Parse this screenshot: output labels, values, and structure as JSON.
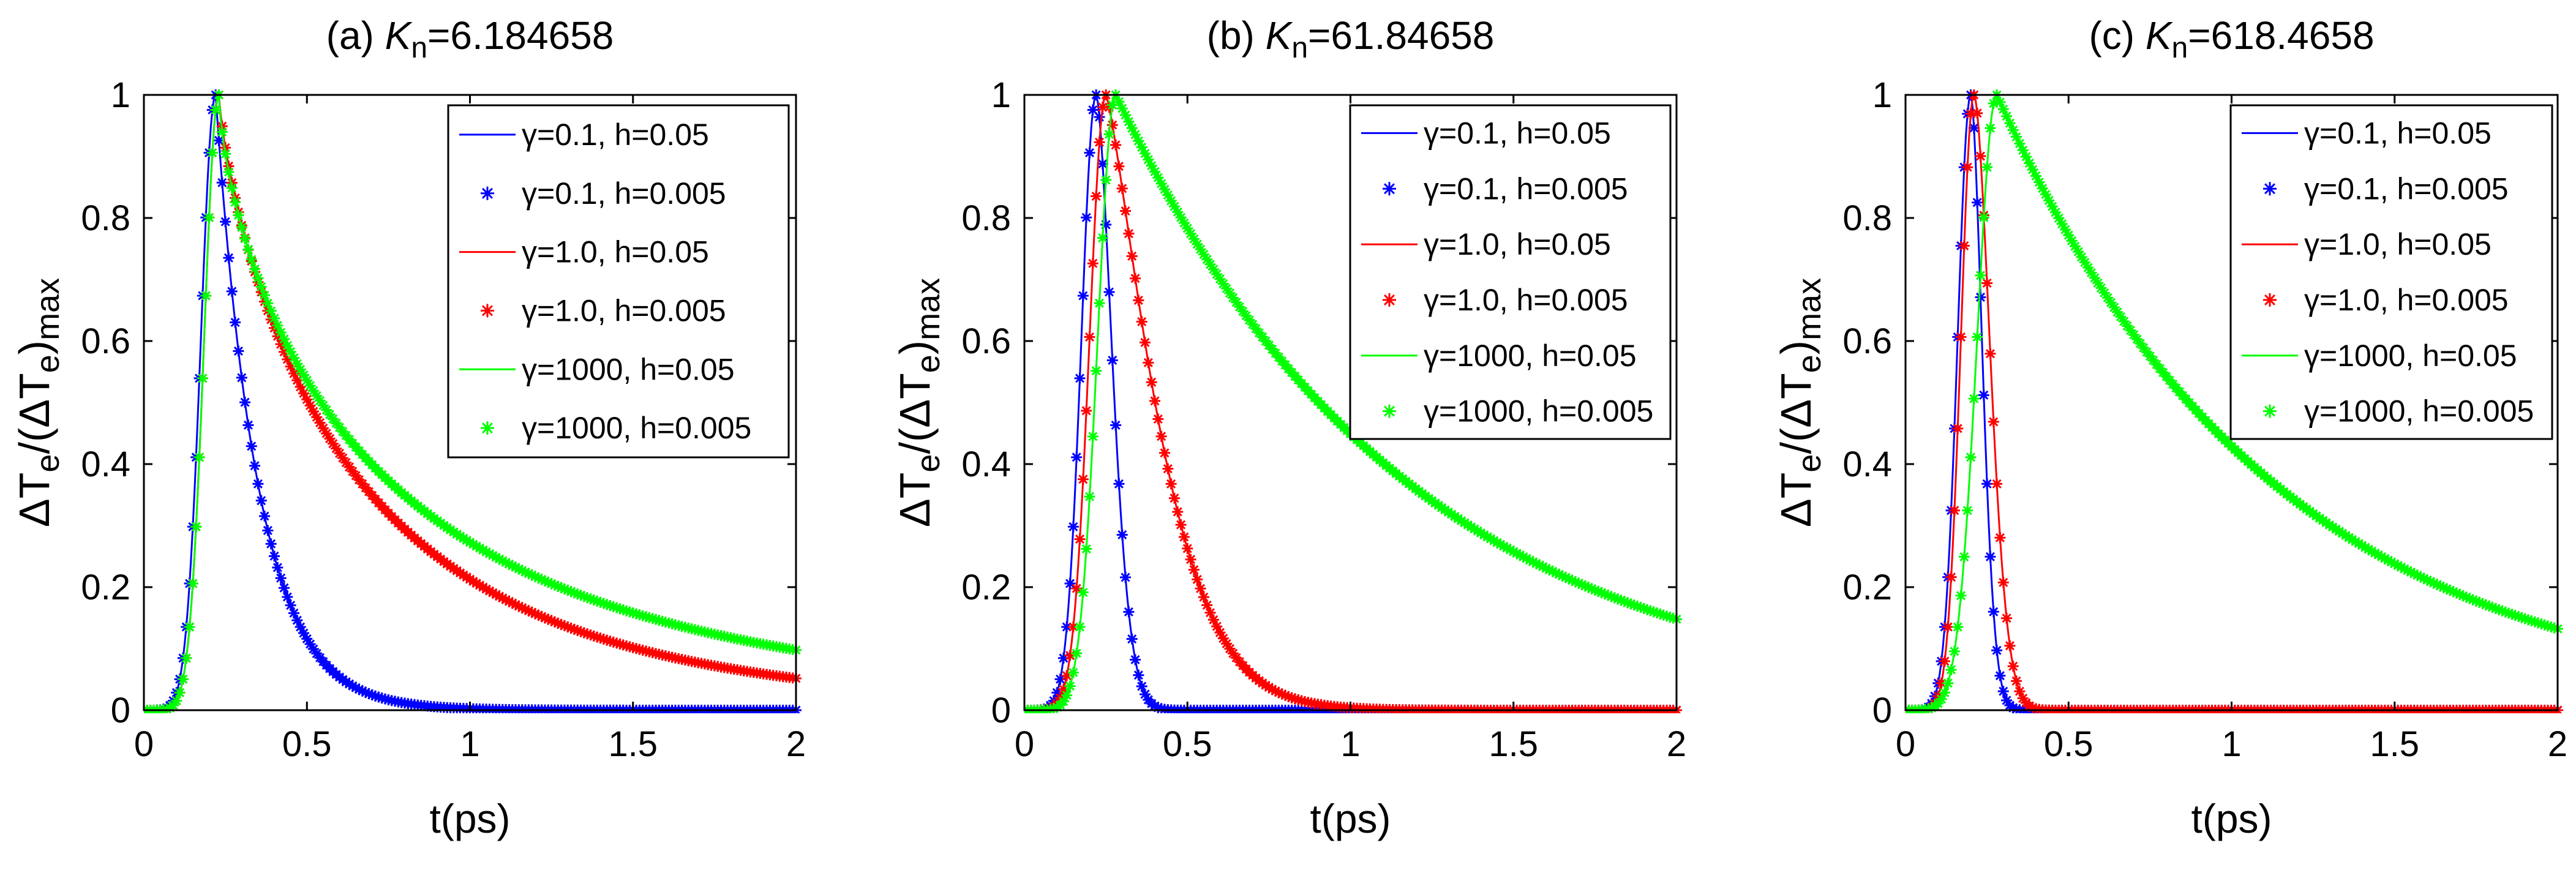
{
  "figure": {
    "style": {
      "colors": {
        "blue": "#0000ff",
        "red": "#ff0000",
        "green": "#00ff00",
        "axis": "#000000"
      }
    }
  },
  "chart_data": [
    {
      "type": "line",
      "panel": "(a)",
      "title_prefix": "(a)",
      "title_symbol": "K",
      "title_subscript": "n",
      "title_value": "=6.184658",
      "xlabel": "t(ps)",
      "ylabel": "ΔT_e/(ΔT_e)_max",
      "xlim": [
        0,
        2
      ],
      "ylim": [
        0,
        1
      ],
      "xticks": [
        0,
        0.5,
        1,
        1.5,
        2
      ],
      "xtick_labels": [
        "0",
        "0.5",
        "1",
        "1.5",
        "2"
      ],
      "yticks": [
        0,
        0.2,
        0.4,
        0.6,
        0.8,
        1
      ],
      "ytick_labels": [
        "0",
        "0.2",
        "0.4",
        "0.6",
        "0.8",
        "1"
      ],
      "legend_position": "top-right",
      "series": [
        {
          "name": "γ=0.1, h=0.05",
          "style": "line",
          "color": "blue",
          "model": {
            "peak": 0.22,
            "rise_sigma": 0.045,
            "decay_tau": 0.13,
            "decay_sharpness": 1.0
          }
        },
        {
          "name": "γ=0.1, h=0.005",
          "style": "markers",
          "color": "blue",
          "model": {
            "peak": 0.22,
            "rise_sigma": 0.045,
            "decay_tau": 0.13,
            "decay_sharpness": 1.0
          }
        },
        {
          "name": "γ=1.0, h=0.05",
          "style": "line",
          "color": "red",
          "model": {
            "peak": 0.23,
            "rise_sigma": 0.045,
            "decay_tau": 0.44,
            "decay_sharpness": 0.78
          }
        },
        {
          "name": "γ=1.0, h=0.005",
          "style": "markers",
          "color": "red",
          "model": {
            "peak": 0.23,
            "rise_sigma": 0.045,
            "decay_tau": 0.44,
            "decay_sharpness": 0.78
          }
        },
        {
          "name": "γ=1000, h=0.05",
          "style": "line",
          "color": "green",
          "model": {
            "peak": 0.23,
            "rise_sigma": 0.045,
            "decay_tau": 0.53,
            "decay_sharpness": 0.7
          }
        },
        {
          "name": "γ=1000, h=0.005",
          "style": "markers",
          "color": "green",
          "model": {
            "peak": 0.23,
            "rise_sigma": 0.045,
            "decay_tau": 0.53,
            "decay_sharpness": 0.7
          }
        }
      ]
    },
    {
      "type": "line",
      "panel": "(b)",
      "title_prefix": "(b)",
      "title_symbol": "K",
      "title_subscript": "n",
      "title_value": "=61.84658",
      "xlabel": "t(ps)",
      "ylabel": "ΔT_e/(ΔT_e)_max",
      "xlim": [
        0,
        2
      ],
      "ylim": [
        0,
        1
      ],
      "xticks": [
        0,
        0.5,
        1,
        1.5,
        2
      ],
      "xtick_labels": [
        "0",
        "0.5",
        "1",
        "1.5",
        "2"
      ],
      "yticks": [
        0,
        0.2,
        0.4,
        0.6,
        0.8,
        1
      ],
      "ytick_labels": [
        "0",
        "0.2",
        "0.4",
        "0.6",
        "0.8",
        "1"
      ],
      "legend_position": "top-right",
      "series": [
        {
          "name": "γ=0.1, h=0.05",
          "style": "line",
          "color": "blue",
          "model": {
            "peak": 0.22,
            "rise_sigma": 0.045,
            "decay_tau": 0.07,
            "decay_sharpness": 1.7
          }
        },
        {
          "name": "γ=0.1, h=0.005",
          "style": "markers",
          "color": "blue",
          "model": {
            "peak": 0.22,
            "rise_sigma": 0.045,
            "decay_tau": 0.07,
            "decay_sharpness": 1.7
          }
        },
        {
          "name": "γ=1.0, h=0.05",
          "style": "line",
          "color": "red",
          "model": {
            "peak": 0.25,
            "rise_sigma": 0.05,
            "decay_tau": 0.2,
            "decay_sharpness": 1.3
          }
        },
        {
          "name": "γ=1.0, h=0.005",
          "style": "markers",
          "color": "red",
          "model": {
            "peak": 0.25,
            "rise_sigma": 0.05,
            "decay_tau": 0.2,
            "decay_sharpness": 1.3
          }
        },
        {
          "name": "γ=1000, h=0.05",
          "style": "line",
          "color": "green",
          "model": {
            "peak": 0.28,
            "rise_sigma": 0.055,
            "decay_tau": 0.9,
            "decay_sharpness": 1.0
          }
        },
        {
          "name": "γ=1000, h=0.005",
          "style": "markers",
          "color": "green",
          "model": {
            "peak": 0.28,
            "rise_sigma": 0.055,
            "decay_tau": 0.9,
            "decay_sharpness": 1.0
          }
        }
      ]
    },
    {
      "type": "line",
      "panel": "(c)",
      "title_prefix": "(c)",
      "title_symbol": "K",
      "title_subscript": "n",
      "title_value": "=618.4658",
      "xlabel": "t(ps)",
      "ylabel": "ΔT_e/(ΔT_e)_max",
      "xlim": [
        0,
        2
      ],
      "ylim": [
        0,
        1
      ],
      "xticks": [
        0,
        0.5,
        1,
        1.5,
        2
      ],
      "xtick_labels": [
        "0",
        "0.5",
        "1",
        "1.5",
        "2"
      ],
      "yticks": [
        0,
        0.2,
        0.4,
        0.6,
        0.8,
        1
      ],
      "ytick_labels": [
        "0",
        "0.2",
        "0.4",
        "0.6",
        "0.8",
        "1"
      ],
      "legend_position": "top-right",
      "series": [
        {
          "name": "γ=0.1, h=0.05",
          "style": "line",
          "color": "blue",
          "model": {
            "peak": 0.2,
            "rise_sigma": 0.04,
            "decay_tau": 0.05,
            "decay_sharpness": 1.8
          }
        },
        {
          "name": "γ=0.1, h=0.005",
          "style": "markers",
          "color": "blue",
          "model": {
            "peak": 0.2,
            "rise_sigma": 0.04,
            "decay_tau": 0.05,
            "decay_sharpness": 1.8
          }
        },
        {
          "name": "γ=1.0, h=0.05",
          "style": "line",
          "color": "red",
          "model": {
            "peak": 0.21,
            "rise_sigma": 0.04,
            "decay_tau": 0.07,
            "decay_sharpness": 1.8
          }
        },
        {
          "name": "γ=1.0, h=0.005",
          "style": "markers",
          "color": "red",
          "model": {
            "peak": 0.21,
            "rise_sigma": 0.04,
            "decay_tau": 0.07,
            "decay_sharpness": 1.8
          }
        },
        {
          "name": "γ=1000, h=0.05",
          "style": "line",
          "color": "green",
          "model": {
            "peak": 0.28,
            "rise_sigma": 0.06,
            "decay_tau": 0.85,
            "decay_sharpness": 1.0
          }
        },
        {
          "name": "γ=1000, h=0.005",
          "style": "markers",
          "color": "green",
          "model": {
            "peak": 0.28,
            "rise_sigma": 0.06,
            "decay_tau": 0.85,
            "decay_sharpness": 1.0
          }
        }
      ]
    }
  ]
}
